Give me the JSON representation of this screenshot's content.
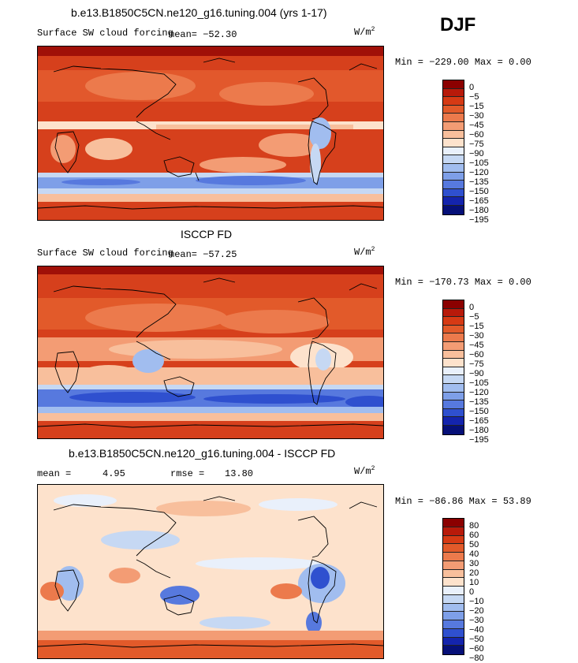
{
  "season": "DJF",
  "panels": [
    {
      "title": "b.e13.B1850C5CN.ne120_g16.tuning.004 (yrs 1-17)",
      "variable": "Surface SW cloud forcing",
      "stat": "mean=  −52.30",
      "units_base": "W/m",
      "units_exp": "2",
      "minmax": "Min = −229.00 Max =   0.00",
      "levels": [
        "0",
        "−5",
        "−15",
        "−30",
        "−45",
        "−60",
        "−75",
        "−90",
        "−105",
        "−120",
        "−135",
        "−150",
        "−165",
        "−180",
        "−195"
      ],
      "colors": [
        "#8b0000",
        "#b81a0a",
        "#d63a14",
        "#e25a2a",
        "#ec7a4c",
        "#f39c74",
        "#f8bf9c",
        "#fde2cc",
        "#e9f0fb",
        "#c6d8f3",
        "#a1bdef",
        "#7e9fe8",
        "#5779de",
        "#2f50cf",
        "#1424ad",
        "#061078"
      ]
    },
    {
      "title": "ISCCP FD",
      "variable": "Surface SW cloud forcing",
      "stat": "mean=  −57.25",
      "units_base": "W/m",
      "units_exp": "2",
      "minmax": "Min = −170.73 Max =   0.00",
      "levels": [
        "0",
        "−5",
        "−15",
        "−30",
        "−45",
        "−60",
        "−75",
        "−90",
        "−105",
        "−120",
        "−135",
        "−150",
        "−165",
        "−180",
        "−195"
      ],
      "colors": [
        "#8b0000",
        "#b81a0a",
        "#d63a14",
        "#e25a2a",
        "#ec7a4c",
        "#f39c74",
        "#f8bf9c",
        "#fde2cc",
        "#e9f0fb",
        "#c6d8f3",
        "#a1bdef",
        "#7e9fe8",
        "#5779de",
        "#2f50cf",
        "#1424ad",
        "#061078"
      ]
    },
    {
      "title": "b.e13.B1850C5CN.ne120_g16.tuning.004 - ISCCP FD",
      "mean_label": "mean =",
      "mean_value": "4.95",
      "rmse_label": "rmse =",
      "rmse_value": "13.80",
      "units_base": "W/m",
      "units_exp": "2",
      "minmax": "Min = −86.86 Max =  53.89",
      "levels": [
        "80",
        "60",
        "50",
        "40",
        "30",
        "20",
        "10",
        "0",
        "−10",
        "−20",
        "−30",
        "−40",
        "−50",
        "−60",
        "−80"
      ],
      "colors": [
        "#8b0000",
        "#b81a0a",
        "#d63a14",
        "#e25a2a",
        "#ec7a4c",
        "#f39c74",
        "#f8bf9c",
        "#fde2cc",
        "#e9f0fb",
        "#c6d8f3",
        "#a1bdef",
        "#7e9fe8",
        "#5779de",
        "#2f50cf",
        "#1424ad",
        "#061078"
      ]
    }
  ]
}
